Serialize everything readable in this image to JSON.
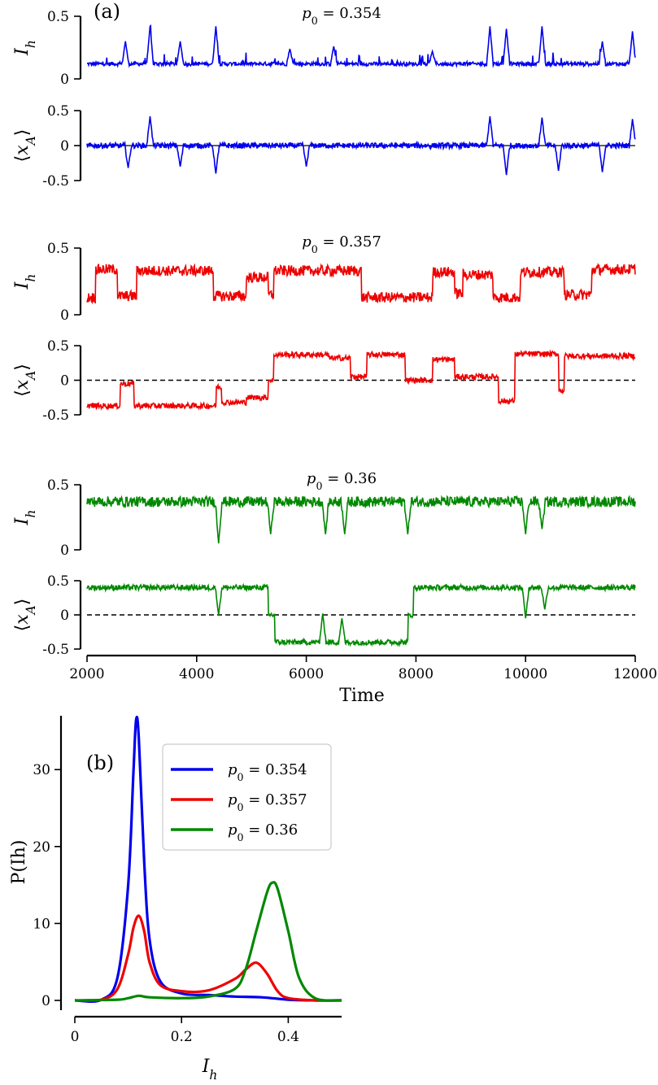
{
  "chart_data": [
    {
      "type": "line",
      "panel_label": "(a)",
      "xlabel": "Time",
      "xlim": [
        2000,
        12000
      ],
      "xticks": [
        "2000",
        "4000",
        "6000",
        "8000",
        "10000",
        "12000"
      ],
      "rows": [
        {
          "annotation": "p0 = 0.354",
          "color": "#0000ee",
          "ih": {
            "ylabel": "Ih",
            "ylim": [
              0,
              0.5
            ],
            "yticks": [
              "0",
              "0.5"
            ],
            "baseline": 0.12,
            "spikes": [
              {
                "t": 2700,
                "v": 0.3
              },
              {
                "t": 3150,
                "v": 0.42
              },
              {
                "t": 3700,
                "v": 0.3
              },
              {
                "t": 4350,
                "v": 0.42
              },
              {
                "t": 5700,
                "v": 0.24
              },
              {
                "t": 6500,
                "v": 0.26
              },
              {
                "t": 8300,
                "v": 0.22
              },
              {
                "t": 9350,
                "v": 0.42
              },
              {
                "t": 9650,
                "v": 0.4
              },
              {
                "t": 10300,
                "v": 0.42
              },
              {
                "t": 11400,
                "v": 0.3
              },
              {
                "t": 11950,
                "v": 0.38
              }
            ]
          },
          "xa": {
            "ylabel": "⟨xA⟩",
            "ylim": [
              -0.5,
              0.5
            ],
            "yticks": [
              "0.5",
              "0",
              "-0.5"
            ],
            "dashed_zero": false,
            "states": [
              0
            ],
            "spikes": [
              {
                "t": 2750,
                "v": -0.32
              },
              {
                "t": 3150,
                "v": 0.42
              },
              {
                "t": 3700,
                "v": -0.3
              },
              {
                "t": 4350,
                "v": -0.4
              },
              {
                "t": 6000,
                "v": -0.3
              },
              {
                "t": 9350,
                "v": 0.42
              },
              {
                "t": 9650,
                "v": -0.42
              },
              {
                "t": 10300,
                "v": 0.4
              },
              {
                "t": 10600,
                "v": -0.36
              },
              {
                "t": 11400,
                "v": -0.38
              },
              {
                "t": 11950,
                "v": 0.38
              }
            ]
          }
        },
        {
          "annotation": "p0 = 0.357",
          "color": "#ee0000",
          "ih": {
            "ylabel": "Ih",
            "ylim": [
              0,
              0.5
            ],
            "yticks": [
              "0.5",
              "0"
            ],
            "segments": [
              [
                2000,
                2150,
                0.13
              ],
              [
                2150,
                2550,
                0.34
              ],
              [
                2550,
                2900,
                0.14
              ],
              [
                2900,
                4300,
                0.33
              ],
              [
                4300,
                4900,
                0.14
              ],
              [
                4900,
                5300,
                0.28
              ],
              [
                5300,
                5400,
                0.15
              ],
              [
                5400,
                7000,
                0.33
              ],
              [
                7000,
                8300,
                0.13
              ],
              [
                8300,
                8700,
                0.32
              ],
              [
                8700,
                8850,
                0.16
              ],
              [
                8850,
                9400,
                0.3
              ],
              [
                9400,
                9900,
                0.13
              ],
              [
                9900,
                10700,
                0.32
              ],
              [
                10700,
                11200,
                0.15
              ],
              [
                11200,
                12000,
                0.34
              ]
            ]
          },
          "xa": {
            "ylabel": "⟨xA⟩",
            "ylim": [
              -0.5,
              0.5
            ],
            "yticks": [
              "0.5",
              "0",
              "-0.5"
            ],
            "dashed_zero": true,
            "segments": [
              [
                2000,
                2600,
                -0.37
              ],
              [
                2600,
                2850,
                -0.05
              ],
              [
                2850,
                4350,
                -0.37
              ],
              [
                4350,
                4450,
                -0.1
              ],
              [
                4450,
                4900,
                -0.32
              ],
              [
                4900,
                5300,
                -0.25
              ],
              [
                5300,
                5400,
                0.0
              ],
              [
                5400,
                6400,
                0.37
              ],
              [
                6400,
                6800,
                0.32
              ],
              [
                6800,
                7100,
                0.05
              ],
              [
                7100,
                7800,
                0.37
              ],
              [
                7800,
                8300,
                0.0
              ],
              [
                8300,
                8700,
                0.3
              ],
              [
                8700,
                9500,
                0.05
              ],
              [
                9500,
                9800,
                -0.3
              ],
              [
                9800,
                10600,
                0.38
              ],
              [
                10600,
                10700,
                -0.15
              ],
              [
                10700,
                12000,
                0.35
              ]
            ]
          }
        },
        {
          "annotation": "p0 = 0.36",
          "color": "#008800",
          "ih": {
            "ylabel": "Ih",
            "ylim": [
              0,
              0.5
            ],
            "yticks": [
              "0.5",
              "0"
            ],
            "baseline": 0.37,
            "dips": [
              {
                "t": 4400,
                "v": 0.05
              },
              {
                "t": 5350,
                "v": 0.12
              },
              {
                "t": 6350,
                "v": 0.12
              },
              {
                "t": 6700,
                "v": 0.12
              },
              {
                "t": 7850,
                "v": 0.12
              },
              {
                "t": 10000,
                "v": 0.12
              },
              {
                "t": 10300,
                "v": 0.16
              }
            ]
          },
          "xa": {
            "ylabel": "⟨xA⟩",
            "ylim": [
              -0.5,
              0.5
            ],
            "yticks": [
              "0.5",
              "0",
              "-0.5"
            ],
            "dashed_zero": true,
            "segments": [
              [
                2000,
                5300,
                0.4
              ],
              [
                5300,
                5420,
                0.0
              ],
              [
                5420,
                7850,
                -0.4
              ],
              [
                7850,
                7950,
                0.0
              ],
              [
                7950,
                12000,
                0.4
              ]
            ],
            "spikes": [
              {
                "t": 4400,
                "v": 0.0
              },
              {
                "t": 6300,
                "v": 0.02
              },
              {
                "t": 6650,
                "v": -0.05
              },
              {
                "t": 10000,
                "v": -0.05
              },
              {
                "t": 10350,
                "v": 0.08
              }
            ]
          }
        }
      ]
    },
    {
      "type": "line",
      "panel_label": "(b)",
      "xlabel": "Ih",
      "ylabel": "P(Ih)",
      "xlim": [
        0,
        0.5
      ],
      "ylim": [
        0,
        37
      ],
      "xticks": [
        "0",
        "0.2",
        "0.4"
      ],
      "yticks": [
        "0",
        "10",
        "20",
        "30"
      ],
      "legend_location": "upper-center",
      "series": [
        {
          "name": "p0 = 0.354",
          "color": "#0000ee",
          "x": [
            0,
            0.05,
            0.08,
            0.1,
            0.11,
            0.115,
            0.12,
            0.13,
            0.14,
            0.16,
            0.2,
            0.25,
            0.3,
            0.35,
            0.4,
            0.45,
            0.5
          ],
          "y": [
            0,
            0.1,
            3,
            15,
            30,
            36.5,
            34,
            18,
            8,
            2.5,
            0.9,
            0.7,
            0.5,
            0.4,
            0.1,
            0,
            0
          ]
        },
        {
          "name": "p0 = 0.357",
          "color": "#ee0000",
          "x": [
            0,
            0.05,
            0.08,
            0.1,
            0.11,
            0.12,
            0.13,
            0.14,
            0.16,
            0.2,
            0.25,
            0.3,
            0.32,
            0.34,
            0.36,
            0.38,
            0.4,
            0.45,
            0.5
          ],
          "y": [
            0,
            0.1,
            1.5,
            6,
            9.5,
            11,
            9,
            5,
            2,
            1.2,
            1.3,
            2.8,
            4,
            4.9,
            3.5,
            1.2,
            0.3,
            0,
            0
          ]
        },
        {
          "name": "p0 = 0.36",
          "color": "#008800",
          "x": [
            0,
            0.08,
            0.1,
            0.12,
            0.14,
            0.2,
            0.25,
            0.3,
            0.32,
            0.34,
            0.36,
            0.37,
            0.38,
            0.4,
            0.42,
            0.45,
            0.5
          ],
          "y": [
            0,
            0.1,
            0.3,
            0.6,
            0.4,
            0.3,
            0.5,
            1.5,
            4,
            9,
            14,
            15.3,
            14.5,
            9,
            3,
            0.3,
            0
          ]
        }
      ]
    }
  ]
}
